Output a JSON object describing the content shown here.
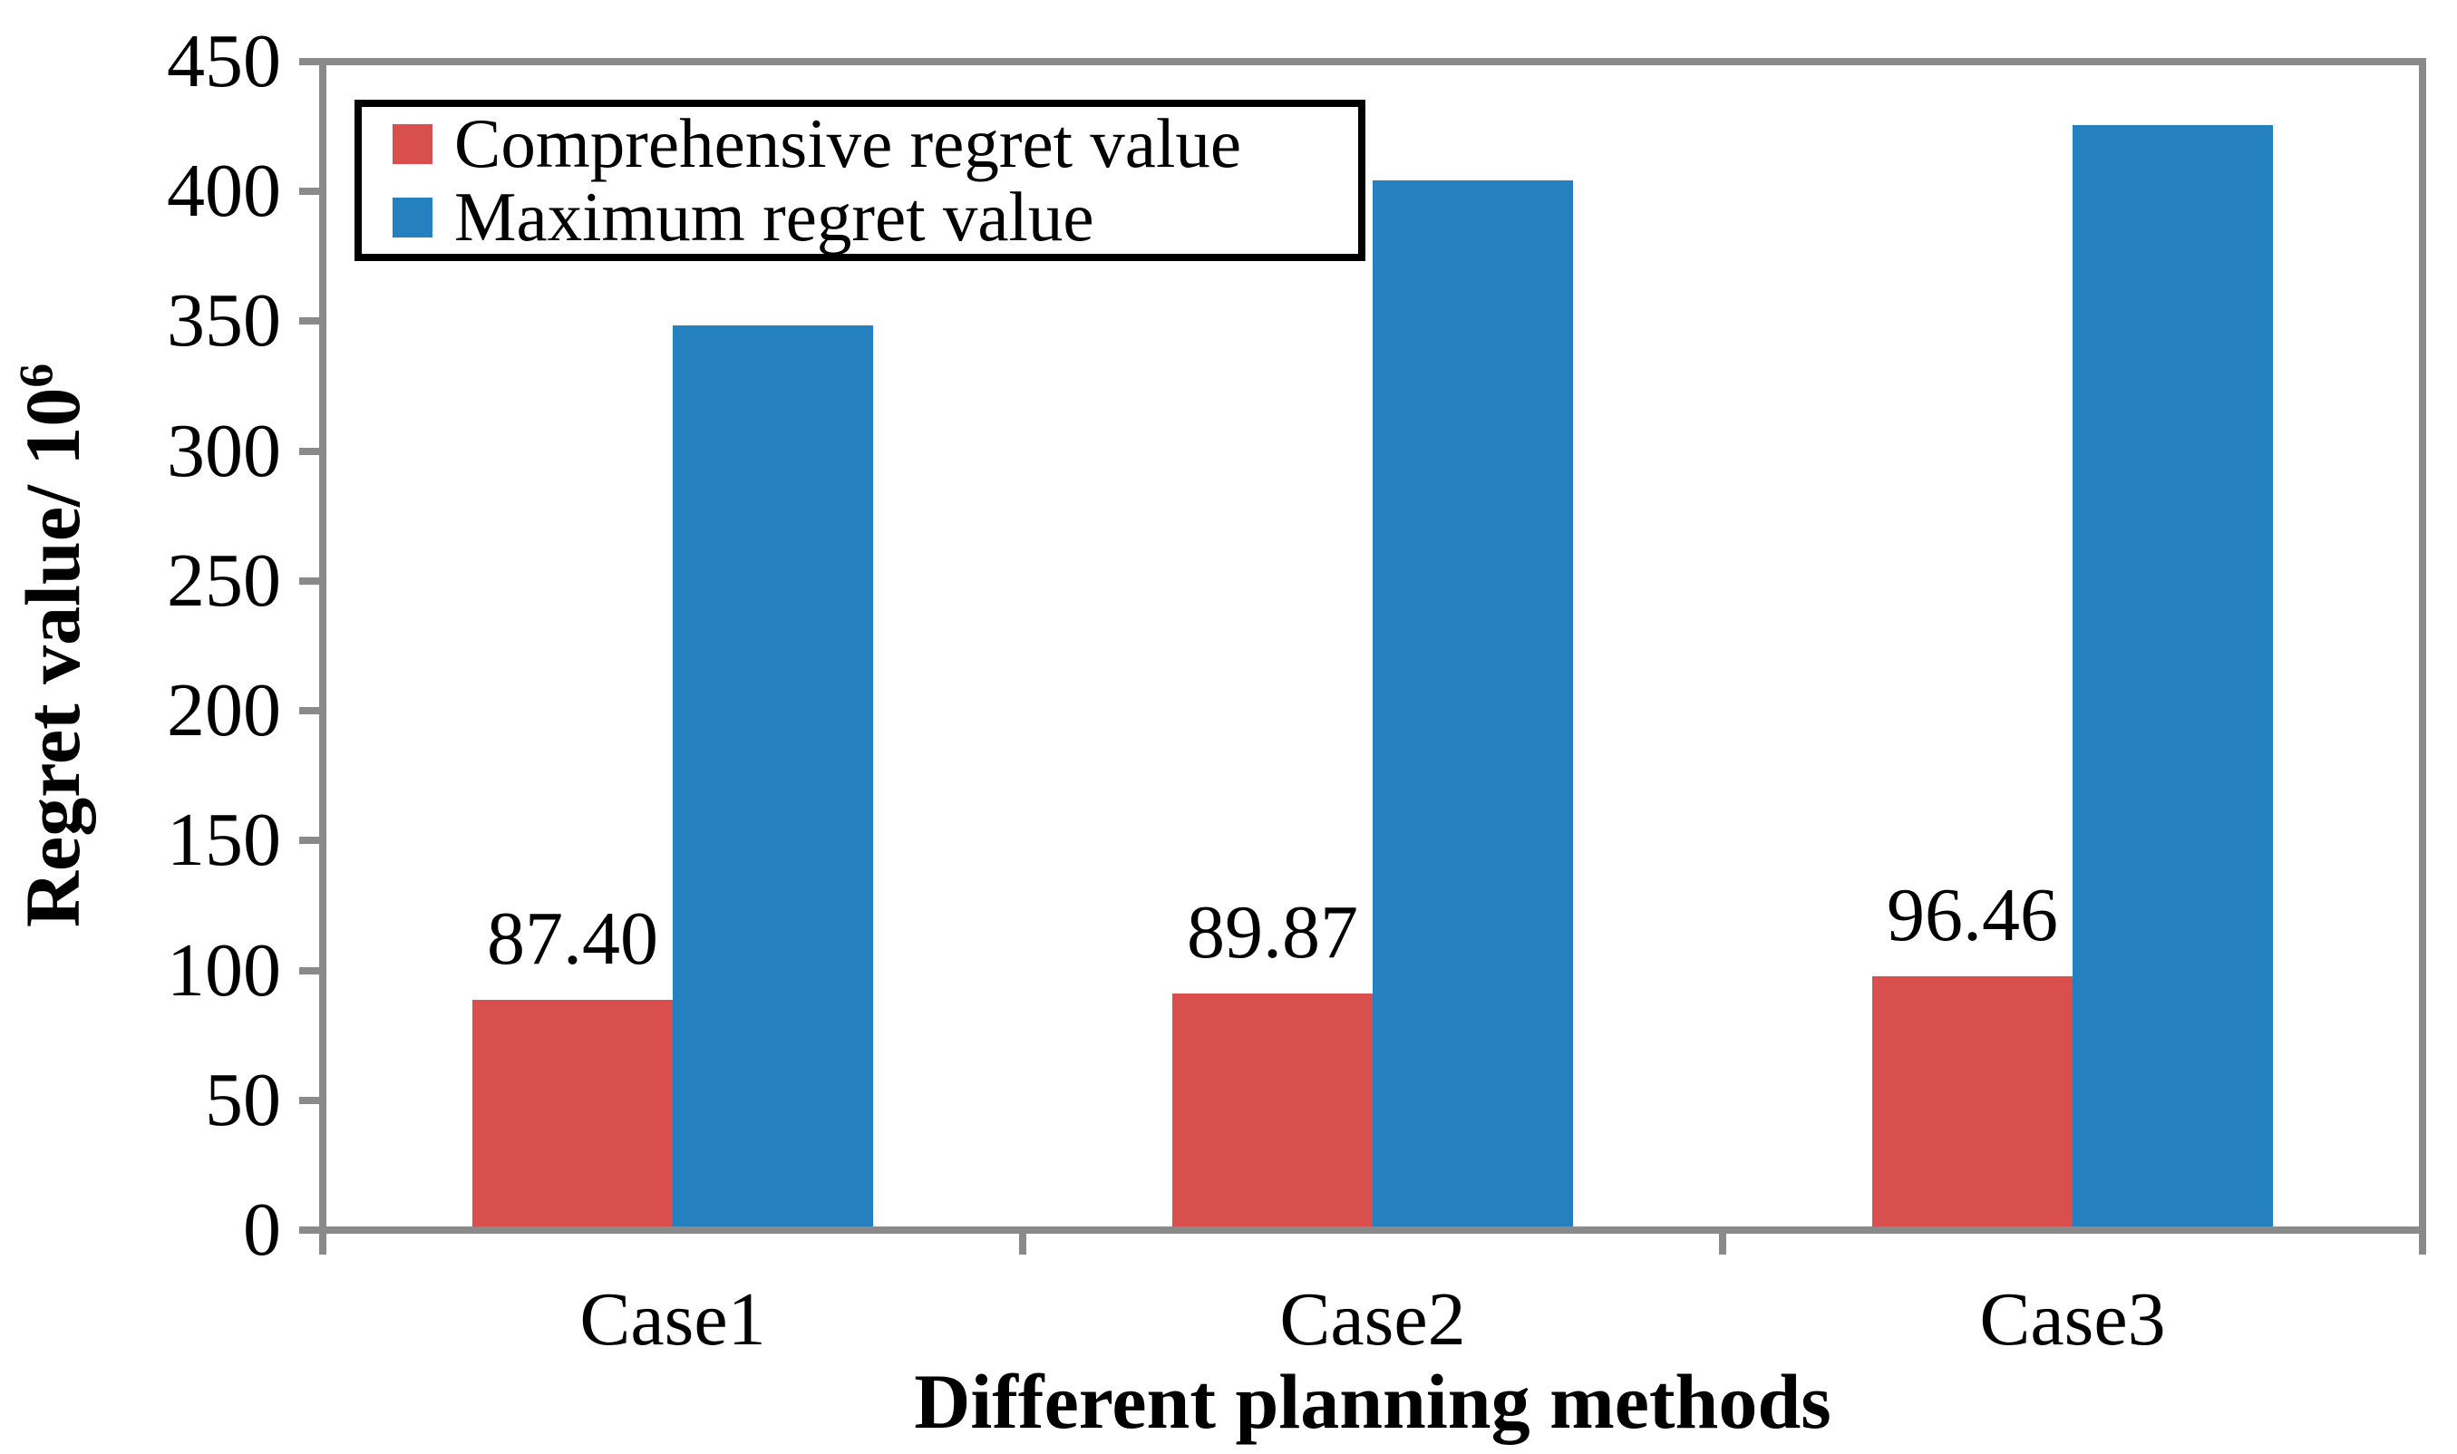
{
  "chart_data": {
    "type": "bar",
    "title": "",
    "categories": [
      "Case1",
      "Case2",
      "Case3"
    ],
    "series": [
      {
        "name": "Comprehensive regret value",
        "color": "#D94F4E",
        "values": [
          87.4,
          89.87,
          96.46
        ],
        "data_labels": [
          "87.40",
          "89.87",
          "96.46"
        ]
      },
      {
        "name": "Maximum regret value",
        "color": "#2480BE",
        "values": [
          347,
          403,
          424
        ],
        "data_labels": []
      }
    ],
    "xlabel": "Different planning methods",
    "ylabel": {
      "text": "Regret value/ 10",
      "superscript": "6"
    },
    "ylim": [
      0,
      450
    ],
    "ytick_step": 50,
    "grid": false,
    "legend_position": "top-left",
    "axis_color": "#8A8A8A",
    "text_color": "#000000",
    "background": "#FFFFFF"
  }
}
